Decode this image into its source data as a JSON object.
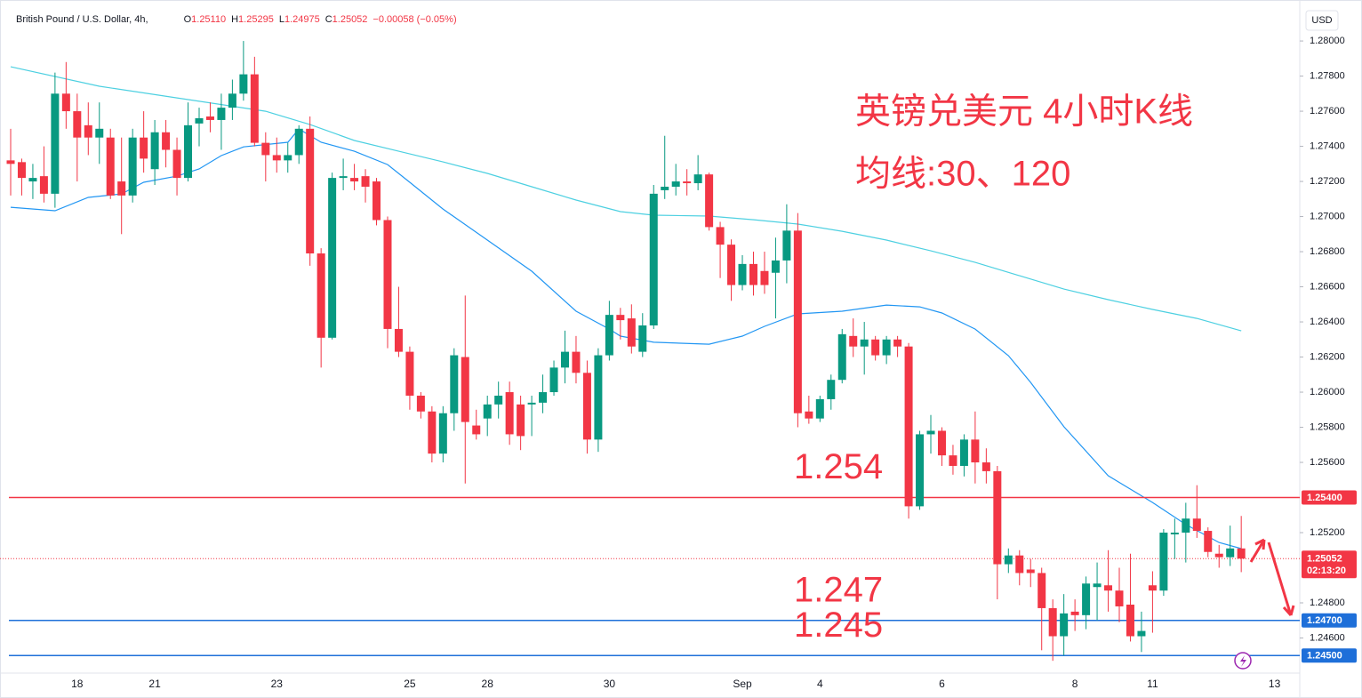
{
  "chart_data": {
    "type": "candlestick",
    "header": {
      "symbol": "British Pound / U.S. Dollar, 4h,",
      "ohlc": [
        {
          "name": "O",
          "value": 1.2511,
          "label": "1.25110"
        },
        {
          "name": "H",
          "value": 1.25295,
          "label": "1.25295"
        },
        {
          "name": "L",
          "value": 1.24975,
          "label": "1.24975"
        },
        {
          "name": "C",
          "value": 1.25052,
          "label": "1.25052"
        }
      ],
      "change": "−0.00058 (−0.05%)"
    },
    "currency": "USD",
    "title": "英镑兑美元 4小时K线",
    "subtitle": "均线:30、120",
    "up_color": "#089981",
    "down_color": "#f23645",
    "categories": [
      null,
      null,
      null,
      null,
      null,
      null,
      "18",
      null,
      null,
      null,
      null,
      null,
      null,
      "21",
      null,
      null,
      null,
      null,
      null,
      null,
      null,
      null,
      null,
      null,
      "23",
      null,
      null,
      null,
      null,
      null,
      null,
      null,
      null,
      null,
      null,
      null,
      "25",
      null,
      null,
      null,
      null,
      null,
      null,
      "28",
      null,
      null,
      null,
      null,
      null,
      null,
      null,
      null,
      null,
      null,
      "30",
      null,
      null,
      null,
      null,
      null,
      null,
      null,
      null,
      null,
      null,
      null,
      "Sep",
      null,
      null,
      null,
      null,
      null,
      null,
      "4",
      null,
      null,
      null,
      null,
      null,
      null,
      null,
      null,
      null,
      null,
      "6",
      null,
      null,
      null,
      null,
      null,
      null,
      null,
      null,
      null,
      null,
      null,
      "8",
      null,
      null,
      null,
      null,
      null,
      null,
      "11",
      null,
      null,
      null,
      null,
      null,
      null,
      null,
      null,
      null,
      null,
      "13"
    ],
    "open": [
      1.2732,
      1.2731,
      1.272,
      1.2723,
      1.2713,
      1.277,
      1.276,
      1.2752,
      1.2745,
      1.2745,
      1.272,
      1.2712,
      1.2745,
      1.2727,
      1.2748,
      1.2738,
      1.2722,
      1.2753,
      1.2757,
      1.2755,
      1.2762,
      1.277,
      1.2781,
      1.2742,
      1.2735,
      1.2732,
      1.2735,
      1.275,
      1.2679,
      1.2631,
      1.2722,
      1.2722,
      1.2723,
      1.272,
      1.2698,
      1.2636,
      1.2623,
      1.2598,
      1.2589,
      1.2565,
      1.2588,
      1.262,
      1.2581,
      1.2585,
      1.2593,
      1.26,
      1.2593,
      1.2593,
      1.2594,
      1.26,
      1.2614,
      1.2623,
      1.2611,
      1.2573,
      1.2621,
      1.2644,
      1.2642,
      1.2623,
      1.2638,
      1.2715,
      1.2717,
      1.272,
      1.2719,
      1.2724,
      1.2694,
      1.2684,
      1.2661,
      1.2673,
      1.2669,
      1.2668,
      1.2675,
      1.2692,
      1.2589,
      1.2585,
      1.2596,
      1.2607,
      1.2632,
      1.2626,
      1.263,
      1.2621,
      1.263,
      1.2626,
      1.2535,
      1.2576,
      1.2578,
      1.2564,
      1.2558,
      1.2573,
      1.256,
      1.2555,
      1.2502,
      1.2507,
      1.2499,
      1.2497,
      1.2477,
      1.2461,
      1.2475,
      1.2473,
      1.2489,
      1.249,
      1.2487,
      1.2479,
      1.2461,
      1.249,
      1.2487,
      1.2519,
      1.252,
      1.2528,
      1.2521,
      1.2508,
      1.2506,
      1.2511,
      null,
      null,
      null
    ],
    "high": [
      1.275,
      1.2733,
      1.273,
      1.274,
      1.2782,
      1.2788,
      1.277,
      1.2765,
      1.2765,
      1.275,
      1.2745,
      1.275,
      1.276,
      1.2755,
      1.2755,
      1.2745,
      1.2765,
      1.2762,
      1.2765,
      1.277,
      1.2778,
      1.28,
      1.2791,
      1.2748,
      1.2745,
      1.2742,
      1.2752,
      1.2757,
      1.2682,
      1.2725,
      1.2733,
      1.273,
      1.2727,
      1.2722,
      1.27,
      1.266,
      1.2626,
      1.26,
      1.2592,
      1.2592,
      1.2625,
      1.2655,
      1.259,
      1.2598,
      1.2606,
      1.2606,
      1.2598,
      1.2598,
      1.261,
      1.2618,
      1.2635,
      1.2632,
      1.2618,
      1.2625,
      1.2652,
      1.2648,
      1.265,
      1.2645,
      1.2718,
      1.2746,
      1.273,
      1.2727,
      1.2735,
      1.2725,
      1.2697,
      1.2687,
      1.2678,
      1.268,
      1.268,
      1.2688,
      1.2707,
      1.2702,
      1.2598,
      1.2598,
      1.261,
      1.2636,
      1.2642,
      1.264,
      1.2632,
      1.2632,
      1.2632,
      1.2628,
      1.2578,
      1.2587,
      1.258,
      1.257,
      1.2576,
      1.2589,
      1.2568,
      1.2558,
      1.2511,
      1.251,
      1.2505,
      1.25,
      1.2482,
      1.2485,
      1.2482,
      1.2495,
      1.2503,
      1.251,
      1.25,
      1.2508,
      1.2475,
      1.2498,
      1.2522,
      1.2528,
      1.2537,
      1.2547,
      1.2523,
      1.2513,
      1.2524,
      1.25295,
      null,
      null,
      null
    ],
    "low": [
      1.2712,
      1.2712,
      1.271,
      1.2708,
      1.2705,
      1.275,
      1.272,
      1.2735,
      1.273,
      1.271,
      1.269,
      1.2708,
      1.2725,
      1.2718,
      1.2728,
      1.2712,
      1.272,
      1.274,
      1.2748,
      1.2738,
      1.2755,
      1.2766,
      1.274,
      1.272,
      1.2725,
      1.2725,
      1.273,
      1.2672,
      1.2614,
      1.263,
      1.2715,
      1.2715,
      1.2708,
      1.2695,
      1.2625,
      1.262,
      1.259,
      1.2585,
      1.256,
      1.256,
      1.2578,
      1.2548,
      1.2573,
      1.2575,
      1.2585,
      1.257,
      1.2567,
      1.2575,
      1.2588,
      1.2598,
      1.2605,
      1.2605,
      1.2565,
      1.2566,
      1.2618,
      1.263,
      1.2622,
      1.262,
      1.2636,
      1.271,
      1.2712,
      1.2712,
      1.2715,
      1.2692,
      1.2665,
      1.2652,
      1.2658,
      1.2655,
      1.2656,
      1.2642,
      1.2662,
      1.258,
      1.2582,
      1.2583,
      1.259,
      1.2605,
      1.262,
      1.261,
      1.2618,
      1.2616,
      1.262,
      1.2528,
      1.2533,
      1.2565,
      1.2558,
      1.2553,
      1.2552,
      1.2548,
      1.2548,
      1.2482,
      1.2497,
      1.249,
      1.2489,
      1.2453,
      1.2447,
      1.245,
      1.2464,
      1.2465,
      1.247,
      1.2475,
      1.2469,
      1.2458,
      1.2452,
      1.2463,
      1.2484,
      1.2505,
      1.2503,
      1.2517,
      1.2506,
      1.25,
      1.2501,
      1.24975,
      null,
      null,
      null
    ],
    "close": [
      1.273,
      1.2722,
      1.2722,
      1.2713,
      1.277,
      1.276,
      1.2745,
      1.2745,
      1.275,
      1.2712,
      1.2712,
      1.2745,
      1.2733,
      1.2748,
      1.2738,
      1.2722,
      1.2752,
      1.2756,
      1.2755,
      1.2762,
      1.277,
      1.2781,
      1.2742,
      1.2735,
      1.2732,
      1.2735,
      1.275,
      1.2679,
      1.2631,
      1.2722,
      1.2723,
      1.272,
      1.2717,
      1.2698,
      1.2636,
      1.2623,
      1.2598,
      1.2589,
      1.2565,
      1.2588,
      1.2621,
      1.2583,
      1.2576,
      1.2593,
      1.2598,
      1.2576,
      1.2575,
      1.2594,
      1.26,
      1.2614,
      1.2623,
      1.2611,
      1.2573,
      1.2621,
      1.2644,
      1.2641,
      1.2626,
      1.2638,
      1.2713,
      1.2717,
      1.272,
      1.2719,
      1.2724,
      1.2694,
      1.2684,
      1.2661,
      1.2673,
      1.2661,
      1.2661,
      1.2675,
      1.2692,
      1.2588,
      1.2585,
      1.2596,
      1.2607,
      1.2633,
      1.2626,
      1.263,
      1.2621,
      1.263,
      1.2626,
      1.2535,
      1.2576,
      1.2578,
      1.2564,
      1.2558,
      1.2573,
      1.256,
      1.2555,
      1.2502,
      1.2507,
      1.2497,
      1.2497,
      1.2477,
      1.2461,
      1.2474,
      1.2473,
      1.2491,
      1.2491,
      1.2487,
      1.2478,
      1.2461,
      1.2464,
      1.2487,
      1.252,
      1.252,
      1.2528,
      1.2521,
      1.2509,
      1.2506,
      1.2511,
      1.25052,
      null,
      null,
      null
    ],
    "series": [
      {
        "color": "#2196f3",
        "x": [
          0,
          4,
          7,
          10,
          12,
          15,
          17,
          19,
          21,
          25,
          26,
          28,
          31,
          34,
          36,
          39,
          43,
          47,
          51,
          54,
          55,
          58,
          63,
          66,
          68,
          71,
          75,
          79,
          82,
          84,
          87,
          90,
          92,
          95,
          99,
          103,
          106,
          109,
          111
        ],
        "values": [
          1.27053,
          1.27033,
          1.27109,
          1.27129,
          1.27195,
          1.2723,
          1.27271,
          1.27347,
          1.27397,
          1.27423,
          1.27499,
          1.27423,
          1.27372,
          1.27296,
          1.27195,
          1.27043,
          1.26866,
          1.26689,
          1.26461,
          1.26359,
          1.26319,
          1.26284,
          1.26273,
          1.26319,
          1.26375,
          1.26446,
          1.26461,
          1.26496,
          1.26486,
          1.26451,
          1.26359,
          1.26208,
          1.26056,
          1.25803,
          1.25524,
          1.25372,
          1.25246,
          1.25144,
          1.25109
        ]
      },
      {
        "color": "#4dd0e1",
        "x": [
          0,
          8,
          15,
          23,
          27,
          31,
          35,
          39,
          43,
          47,
          51,
          55,
          58,
          63,
          67,
          71,
          75,
          79,
          83,
          87,
          91,
          95,
          99,
          103,
          107,
          111
        ],
        "values": [
          1.27853,
          1.27742,
          1.27676,
          1.276,
          1.27524,
          1.27433,
          1.27372,
          1.27311,
          1.27246,
          1.2717,
          1.27094,
          1.27028,
          1.27008,
          1.27003,
          1.26982,
          1.26957,
          1.26916,
          1.26866,
          1.26805,
          1.26739,
          1.26663,
          1.26587,
          1.26527,
          1.26471,
          1.2642,
          1.26349
        ]
      }
    ],
    "hlines": [
      {
        "value": 1.254,
        "label": "1.25400",
        "annotation": "1.254",
        "color": "#f23645"
      },
      {
        "value": 1.247,
        "label": "1.24700",
        "annotation": "1.247",
        "color": "#1e6fd9"
      },
      {
        "value": 1.245,
        "label": "1.24500",
        "annotation": "1.245",
        "color": "#1e6fd9"
      }
    ],
    "last_price": {
      "value": 1.25052,
      "label": "1.25052",
      "countdown": "02:13:20",
      "color": "#f23645"
    },
    "ylim": [
      1.244,
      1.28208
    ],
    "yticks": [
      {
        "value": 1.28,
        "label": "1.28000"
      },
      {
        "value": 1.278,
        "label": "1.27800"
      },
      {
        "value": 1.276,
        "label": "1.27600"
      },
      {
        "value": 1.274,
        "label": "1.27400"
      },
      {
        "value": 1.272,
        "label": "1.27200"
      },
      {
        "value": 1.27,
        "label": "1.27000"
      },
      {
        "value": 1.268,
        "label": "1.26800"
      },
      {
        "value": 1.266,
        "label": "1.26600"
      },
      {
        "value": 1.264,
        "label": "1.26400"
      },
      {
        "value": 1.262,
        "label": "1.26200"
      },
      {
        "value": 1.26,
        "label": "1.26000"
      },
      {
        "value": 1.258,
        "label": "1.25800"
      },
      {
        "value": 1.256,
        "label": "1.25600"
      },
      {
        "value": 1.252,
        "label": "1.25200"
      },
      {
        "value": 1.248,
        "label": "1.24800"
      },
      {
        "value": 1.246,
        "label": "1.24600"
      }
    ]
  }
}
